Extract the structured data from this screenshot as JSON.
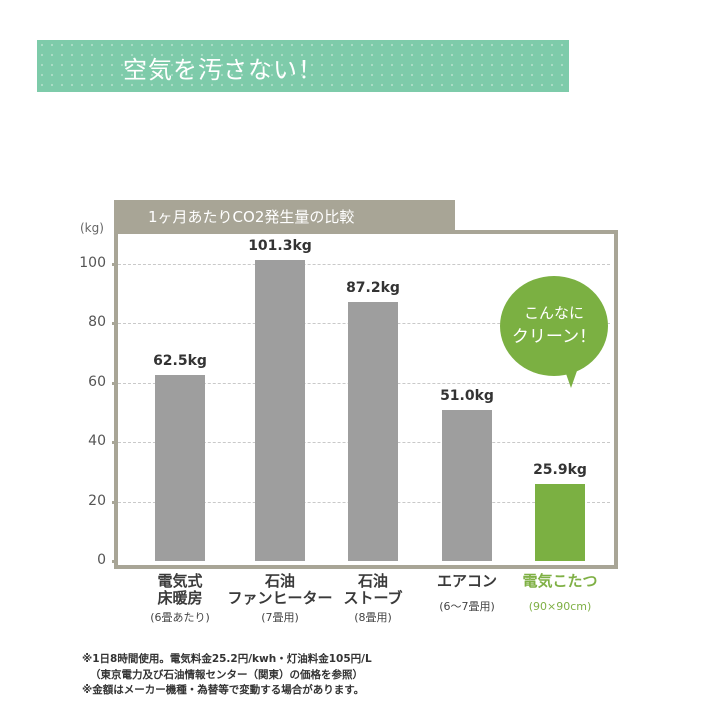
{
  "banner": {
    "title": "空気を汚さない！",
    "color": "#7ecbaa"
  },
  "chart_data": {
    "type": "bar",
    "title": "1ヶ月あたりCO2発生量の比較",
    "xlabel": "",
    "ylabel": "(kg)",
    "ylim": [
      0,
      100
    ],
    "yticks": [
      0,
      20,
      40,
      60,
      80,
      100
    ],
    "grid": true,
    "categories": [
      "電気式床暖房",
      "石油ファンヒーター",
      "石油ストーブ",
      "エアコン",
      "電気こたつ"
    ],
    "category_lines": [
      [
        "電気式",
        "床暖房"
      ],
      [
        "石油",
        "ファンヒーター"
      ],
      [
        "石油",
        "ストーブ"
      ],
      [
        "エアコン"
      ],
      [
        "電気こたつ"
      ]
    ],
    "category_notes": [
      "(6畳あたり)",
      "(7畳用)",
      "(8畳用)",
      "(6〜7畳用)",
      "(90×90cm)"
    ],
    "values": [
      62.5,
      101.3,
      87.2,
      51.0,
      25.9
    ],
    "value_labels": [
      "62.5kg",
      "101.3kg",
      "87.2kg",
      "51.0kg",
      "25.9kg"
    ],
    "colors": [
      "#9e9e9e",
      "#9e9e9e",
      "#9e9e9e",
      "#9e9e9e",
      "#7bb042"
    ],
    "annotation": {
      "line1": "こんなに",
      "line2": "クリーン！",
      "color": "#7bb042"
    }
  },
  "notes": [
    "※1日8時間使用。電気料金25.2円/kwh・灯油料金105円/L",
    "（東京電力及び石油情報センター（関東）の価格を参照）",
    "※金額はメーカー機種・為替等で変動する場合があります。"
  ]
}
